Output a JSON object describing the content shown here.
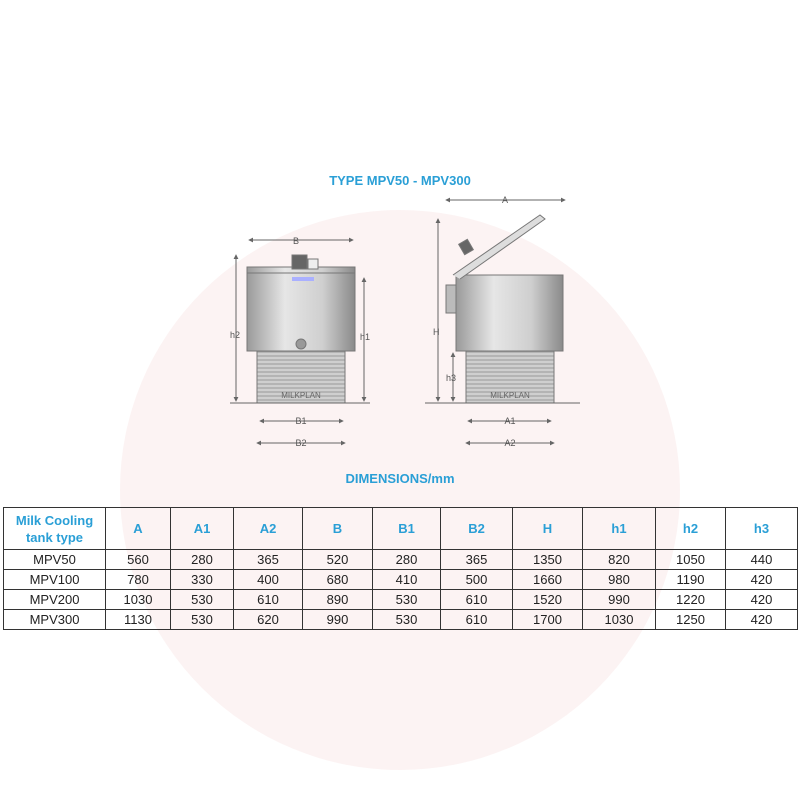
{
  "title": "TYPE MPV50 - MPV300",
  "drawing": {
    "front_labels": {
      "B": "B",
      "h2": "h2",
      "h1": "h1",
      "B1": "B1",
      "B2": "B2",
      "brand": "MILKPLAN"
    },
    "side_labels": {
      "A": "A",
      "H": "H",
      "h3": "h3",
      "A1": "A1",
      "A2": "A2",
      "brand": "MILKPLAN"
    }
  },
  "subtitle": "DIMENSIONS/mm",
  "table": {
    "headers": [
      "Milk Cooling tank type",
      "A",
      "A1",
      "A2",
      "B",
      "B1",
      "B2",
      "H",
      "h1",
      "h2",
      "h3"
    ],
    "rows": [
      [
        "MPV50",
        "560",
        "280",
        "365",
        "520",
        "280",
        "365",
        "1350",
        "820",
        "1050",
        "440"
      ],
      [
        "MPV100",
        "780",
        "330",
        "400",
        "680",
        "410",
        "500",
        "1660",
        "980",
        "1190",
        "420"
      ],
      [
        "MPV200",
        "1030",
        "530",
        "610",
        "890",
        "530",
        "610",
        "1520",
        "990",
        "1220",
        "420"
      ],
      [
        "MPV300",
        "1130",
        "530",
        "620",
        "990",
        "530",
        "610",
        "1700",
        "1030",
        "1250",
        "420"
      ]
    ]
  },
  "colors": {
    "accent": "#2a9fd6"
  }
}
